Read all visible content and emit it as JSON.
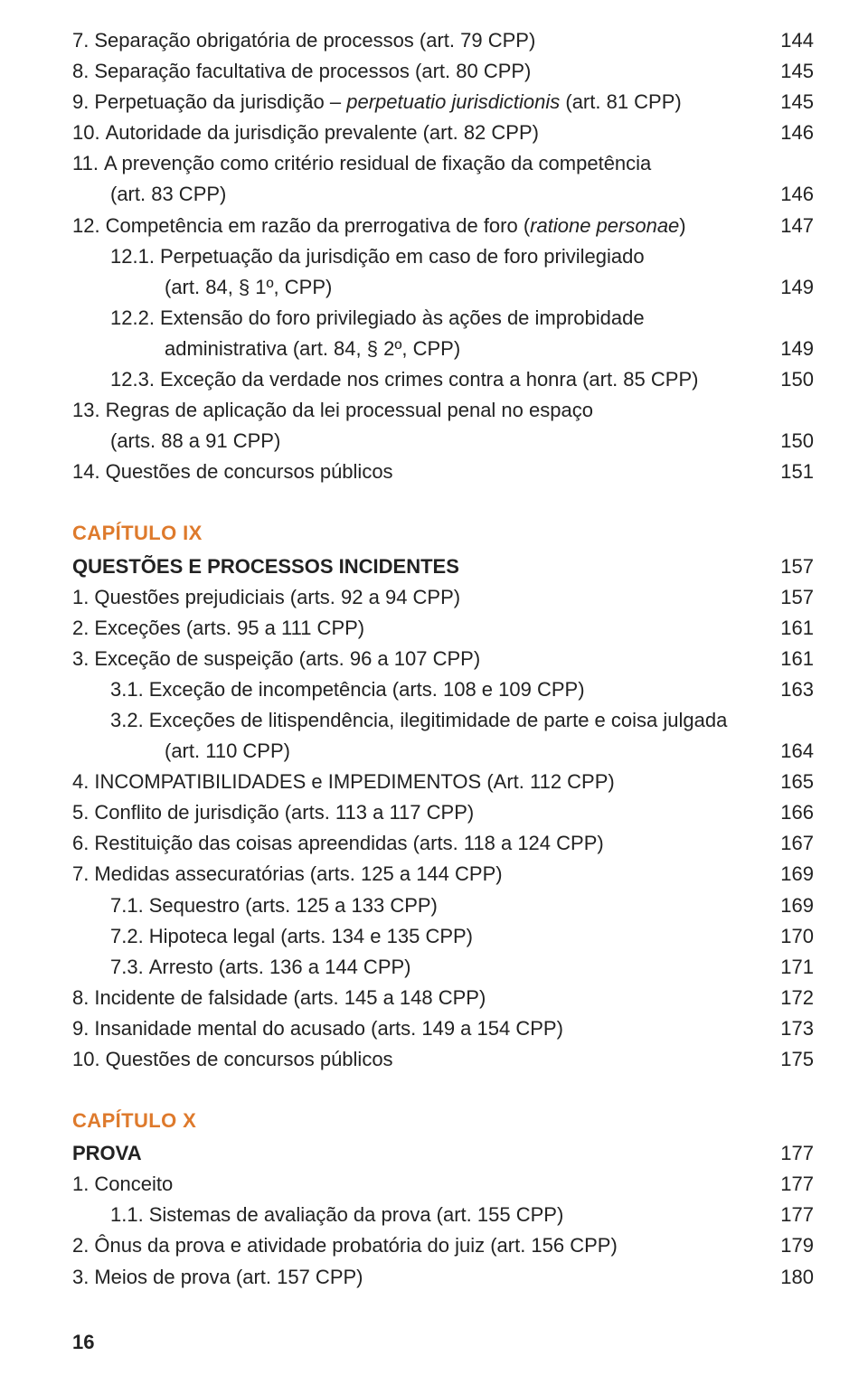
{
  "text_color": "#222222",
  "accent_color": "#de7a2c",
  "background_color": "#ffffff",
  "base_fontsize": 22,
  "entries": [
    {
      "num": "7.",
      "text": "Separação obrigatória de processos (art. 79 CPP)",
      "page": "144",
      "indent": 0
    },
    {
      "num": "8.",
      "text": "Separação facultativa de processos (art. 80 CPP)",
      "page": "145",
      "indent": 0
    },
    {
      "num": "9.",
      "text_html": "Perpetuação da jurisdição – <span class=\"italic\">perpetuatio jurisdictionis</span> (art. 81 CPP)",
      "page": "145",
      "indent": 0
    },
    {
      "num": "10.",
      "text": "Autoridade da jurisdição prevalente (art. 82 CPP)",
      "page": "146",
      "indent": 0
    },
    {
      "num": "11.",
      "wrap": [
        "A prevenção como critério residual de fixação da competência",
        "(art. 83 CPP)"
      ],
      "page": "146",
      "indent": 0
    },
    {
      "num": "12.",
      "text_html": "Competência em razão da prerrogativa de foro (<span class=\"italic\">ratione personae</span>)",
      "page": "147",
      "indent": 0
    },
    {
      "num": "12.1.",
      "wrap": [
        "Perpetuação da jurisdição em caso de foro privilegiado",
        "(art. 84, § 1º, CPP)"
      ],
      "page": "149",
      "indent": 1
    },
    {
      "num": "12.2.",
      "wrap": [
        "Extensão do foro privilegiado às ações de improbidade",
        "administrativa (art. 84, § 2º, CPP)"
      ],
      "page": "149",
      "indent": 1
    },
    {
      "num": "12.3.",
      "text": "Exceção da verdade nos crimes contra a honra (art. 85 CPP)",
      "page": "150",
      "indent": 1
    },
    {
      "num": "13.",
      "wrap": [
        "Regras de aplicação da lei processual penal no espaço",
        "(arts. 88 a 91 CPP)"
      ],
      "page": "150",
      "indent": 0
    },
    {
      "num": "14.",
      "text": "Questões de concursos públicos",
      "page": "151",
      "indent": 0
    }
  ],
  "chapter9": {
    "label": "CAPÍTULO IX",
    "title": "QUESTÕES E PROCESSOS INCIDENTES",
    "page": "157",
    "entries": [
      {
        "num": "1.",
        "text": "Questões prejudiciais (arts. 92 a 94 CPP)",
        "page": "157",
        "indent": 0
      },
      {
        "num": "2.",
        "text": "Exceções (arts. 95 a 111 CPP)",
        "page": "161",
        "indent": 0
      },
      {
        "num": "3.",
        "text": "Exceção de suspeição (arts. 96 a 107 CPP)",
        "page": "161",
        "indent": 0
      },
      {
        "num": "3.1.",
        "text": "Exceção de incompetência (arts. 108 e 109 CPP)",
        "page": "163",
        "indent": 1
      },
      {
        "num": "3.2.",
        "wrap": [
          "Exceções de litispendência, ilegitimidade de parte e coisa julgada",
          "(art. 110 CPP)"
        ],
        "page": "164",
        "indent": 1
      },
      {
        "num": "4.",
        "text": "INCOMPATIBILIDADES e IMPEDIMENTOS (Art. 112 CPP)",
        "page": "165",
        "indent": 0
      },
      {
        "num": "5.",
        "text": "Conflito de jurisdição (arts. 113 a 117 CPP)",
        "page": "166",
        "indent": 0
      },
      {
        "num": "6.",
        "text": "Restituição das coisas apreendidas (arts. 118 a 124 CPP)",
        "page": "167",
        "indent": 0
      },
      {
        "num": "7.",
        "text": "Medidas assecuratórias (arts. 125 a 144 CPP)",
        "page": "169",
        "indent": 0
      },
      {
        "num": "7.1.",
        "text": "Sequestro (arts. 125 a 133 CPP)",
        "page": "169",
        "indent": 1
      },
      {
        "num": "7.2.",
        "text": "Hipoteca legal (arts. 134 e 135 CPP)",
        "page": "170",
        "indent": 1
      },
      {
        "num": "7.3.",
        "text": "Arresto (arts. 136 a 144 CPP)",
        "page": "171",
        "indent": 1
      },
      {
        "num": "8.",
        "text": "Incidente de falsidade (arts. 145 a 148 CPP)",
        "page": "172",
        "indent": 0
      },
      {
        "num": "9.",
        "text": "Insanidade mental do acusado (arts. 149 a 154 CPP)",
        "page": "173",
        "indent": 0
      },
      {
        "num": "10.",
        "text": "Questões de concursos públicos",
        "page": "175",
        "indent": 0
      }
    ]
  },
  "chapter10": {
    "label": "CAPÍTULO X",
    "title": "PROVA",
    "page": "177",
    "entries": [
      {
        "num": "1.",
        "text": "Conceito",
        "page": "177",
        "indent": 0
      },
      {
        "num": "1.1.",
        "text": "Sistemas de avaliação da prova (art. 155 CPP)",
        "page": "177",
        "indent": 1
      },
      {
        "num": "2.",
        "text": "Ônus da prova e atividade probatória do juiz (art. 156 CPP)",
        "page": "179",
        "indent": 0
      },
      {
        "num": "3.",
        "text": "Meios de prova (art. 157 CPP)",
        "page": "180",
        "indent": 0
      }
    ]
  },
  "footer_page": "16"
}
